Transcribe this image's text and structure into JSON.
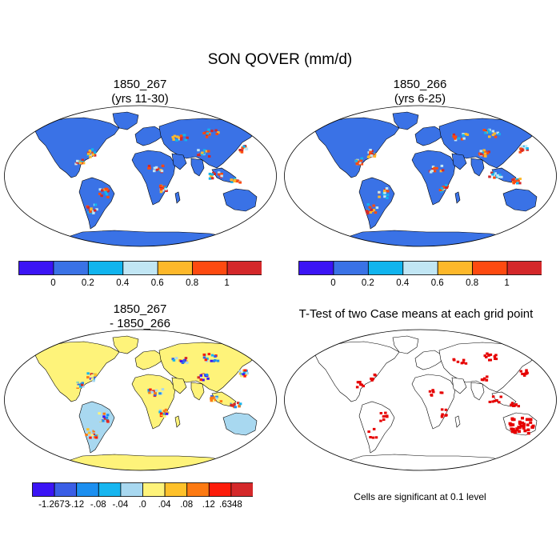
{
  "figure": {
    "title": "SON QOVER (mm/d)"
  },
  "panels": [
    {
      "id": "case1",
      "title_line1": "1850_267",
      "title_line2": "(yrs 11-30)",
      "type": "field"
    },
    {
      "id": "case2",
      "title_line1": "1850_266",
      "title_line2": "(yrs 6-25)",
      "type": "field"
    },
    {
      "id": "difference",
      "title_line1": "1850_267",
      "title_line2": "- 1850_266",
      "type": "difference"
    },
    {
      "id": "ttest",
      "title_line1": "T-Test of two Case means at each grid point",
      "title_line2": "",
      "type": "significance"
    }
  ],
  "colorbar_field": {
    "colors": [
      "#3b14f5",
      "#3a72e6",
      "#10b4ee",
      "#c1e6f4",
      "#fdb82a",
      "#fd4a10",
      "#d4282a"
    ],
    "labels": [
      "0",
      "0.2",
      "0.4",
      "0.6",
      "0.8",
      "1"
    ]
  },
  "colorbar_diff": {
    "colors": [
      "#3b14f5",
      "#3a5ee6",
      "#1c8ff0",
      "#17b6f0",
      "#a8d8f0",
      "#fef37a",
      "#fec12a",
      "#fd7a12",
      "#fd1c0a",
      "#d4282a"
    ],
    "labels": [
      "-1.2673",
      "-.12",
      "-.08",
      "-.04",
      ".0",
      ".04",
      ".08",
      ".12",
      ".6348"
    ]
  },
  "significance_note": "Cells are significant at 0.1 level",
  "significance_color": "#e60000"
}
